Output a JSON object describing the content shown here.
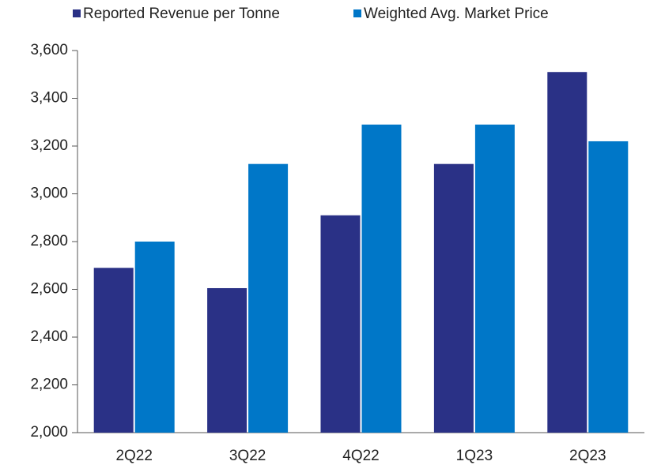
{
  "chart_data": {
    "type": "bar",
    "categories": [
      "2Q22",
      "3Q22",
      "4Q22",
      "1Q23",
      "2Q23"
    ],
    "series": [
      {
        "name": "Reported Revenue per Tonne",
        "color": "#2a3186",
        "values": [
          2690,
          2605,
          2910,
          3125,
          3510
        ]
      },
      {
        "name": "Weighted Avg. Market Price",
        "color": "#0077c8",
        "values": [
          2800,
          3125,
          3290,
          3290,
          3220
        ]
      }
    ],
    "ylim": [
      2000,
      3600
    ],
    "yticks": [
      {
        "value": 2000,
        "label": "2,000"
      },
      {
        "value": 2200,
        "label": "2,200"
      },
      {
        "value": 2400,
        "label": "2,400"
      },
      {
        "value": 2600,
        "label": "2,600"
      },
      {
        "value": 2800,
        "label": "2,800"
      },
      {
        "value": 3000,
        "label": "3,000"
      },
      {
        "value": 3200,
        "label": "3,200"
      },
      {
        "value": 3400,
        "label": "3,400"
      },
      {
        "value": 3600,
        "label": "3,600"
      }
    ],
    "grid": false,
    "legend": "top"
  }
}
